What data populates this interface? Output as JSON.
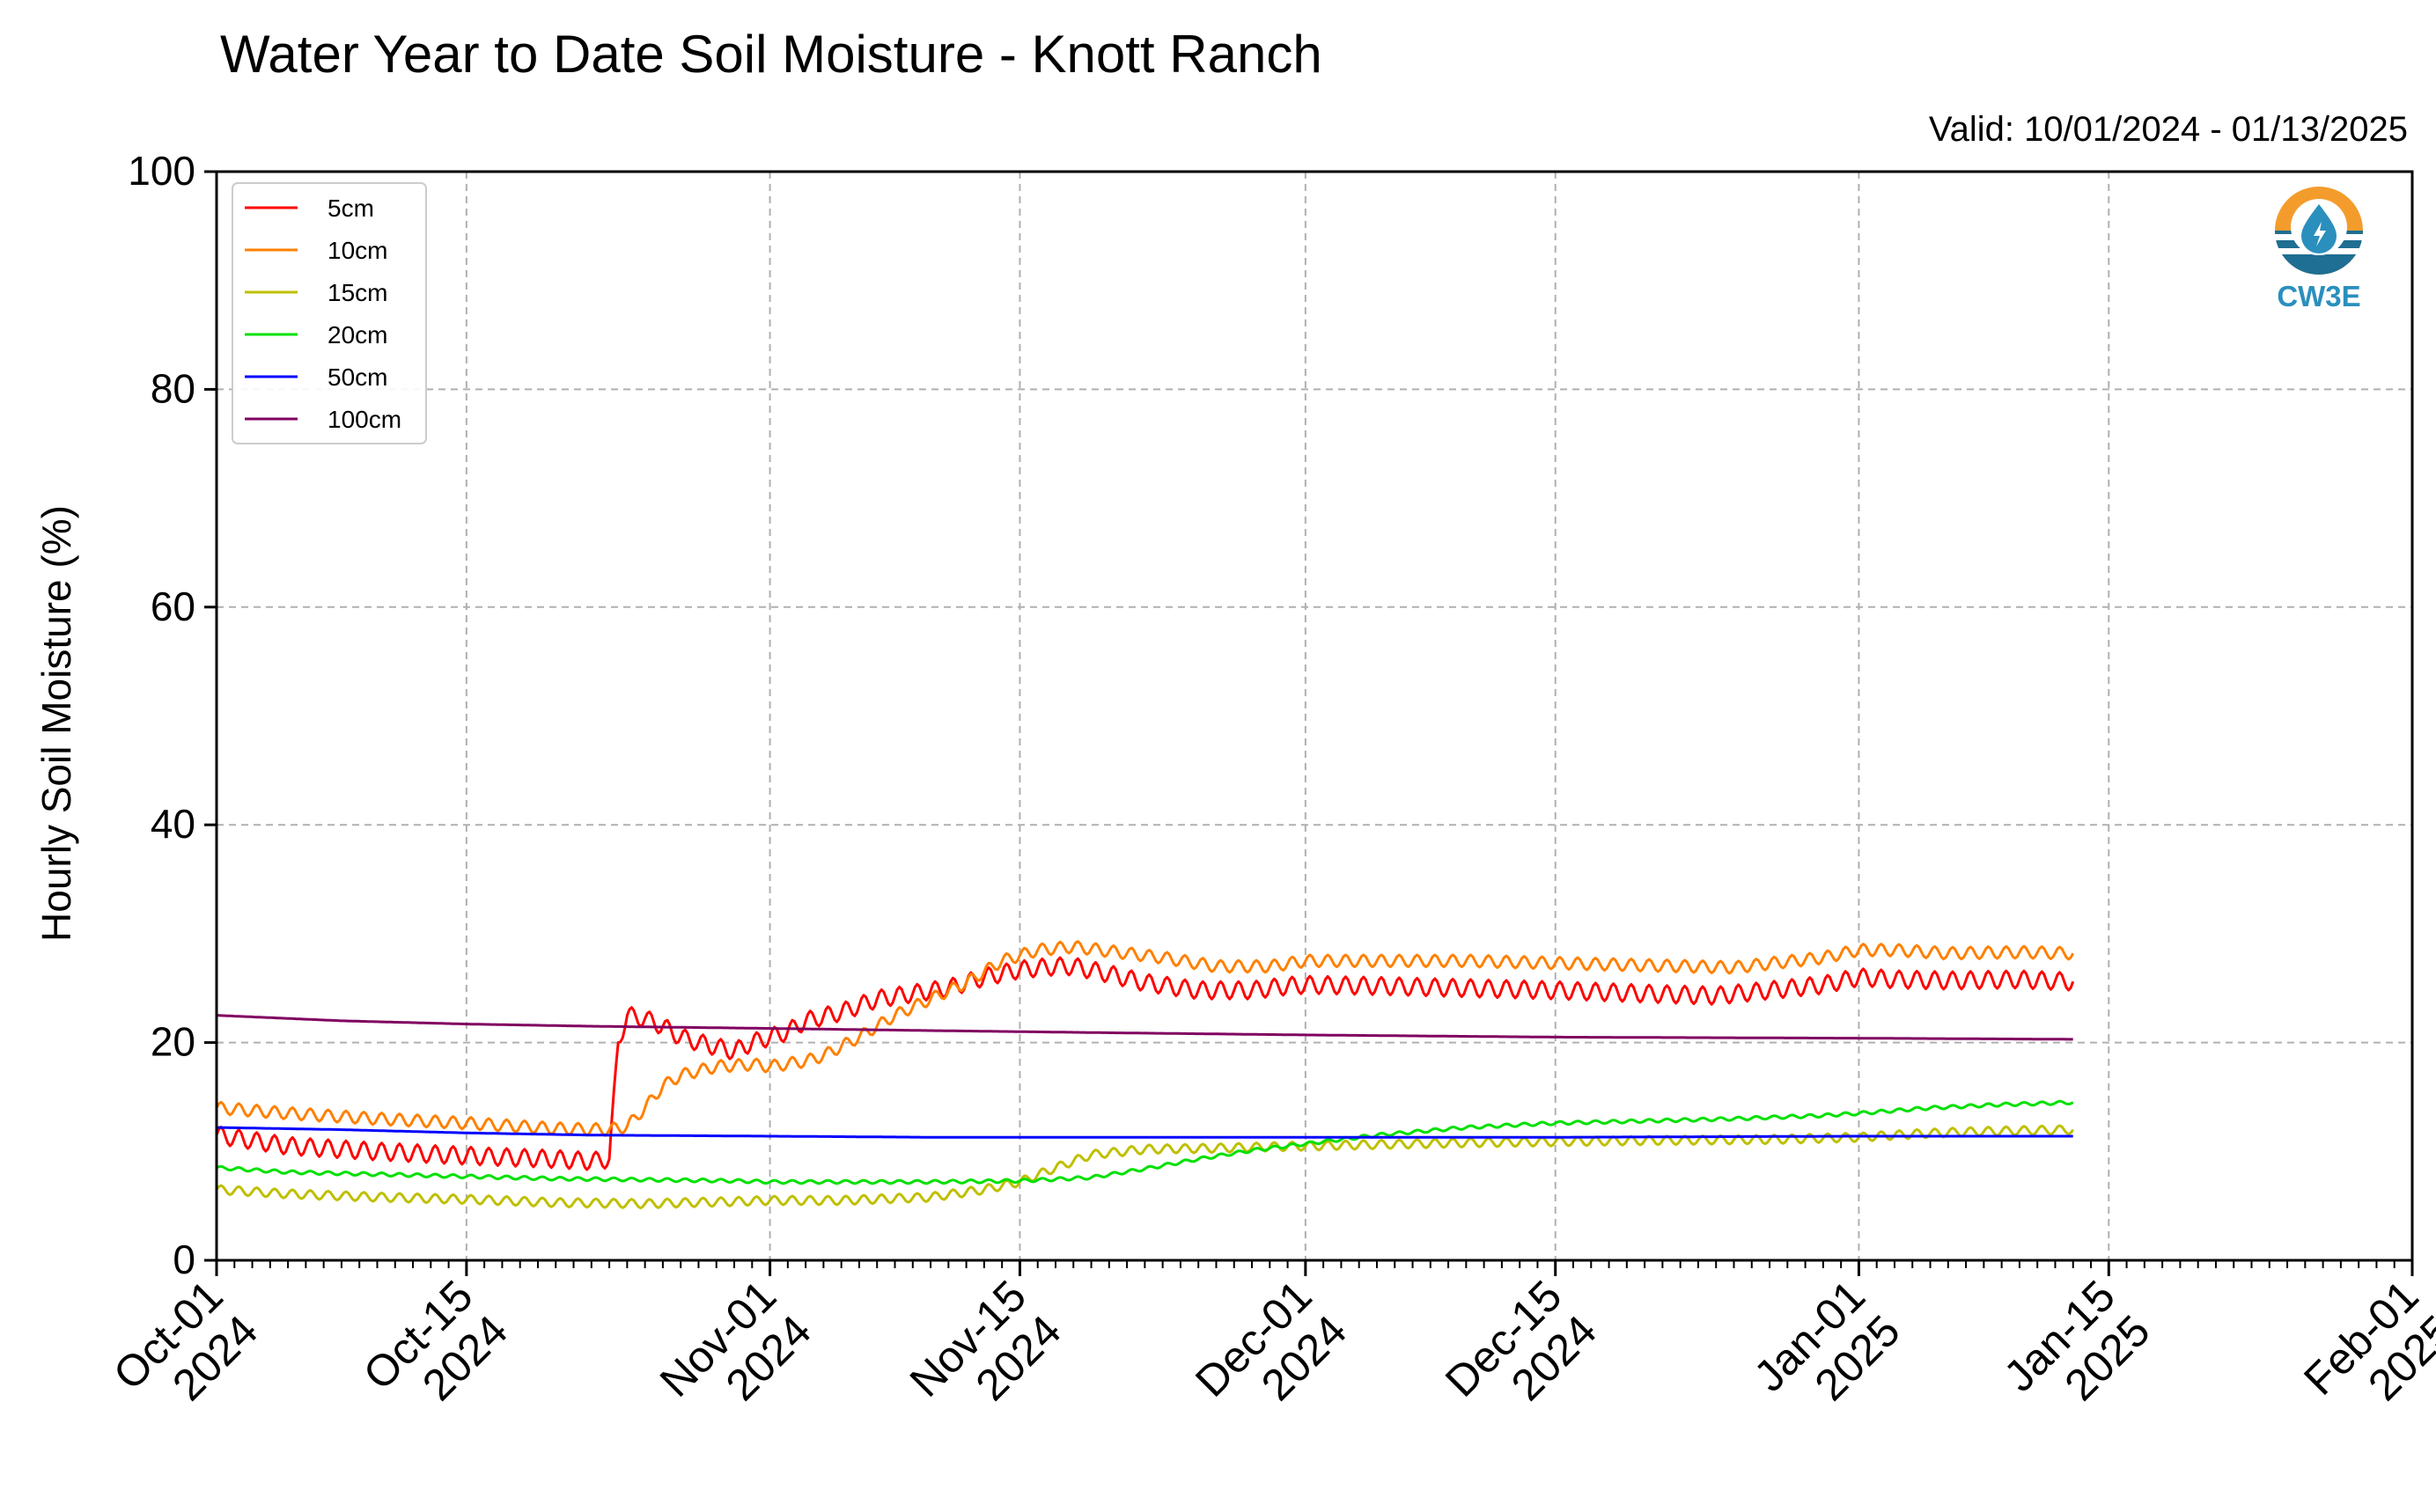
{
  "chart_data": {
    "type": "line",
    "title": "Water Year to Date Soil Moisture - Knott Ranch",
    "subtitle": "Valid: 10/01/2024 - 01/13/2025",
    "ylabel": "Hourly Soil Moisture (%)",
    "xlabel": "",
    "xlim": [
      "2024-10-01",
      "2025-02-01"
    ],
    "ylim": [
      0,
      100
    ],
    "yticks": [
      0,
      20,
      40,
      60,
      80,
      100
    ],
    "xticks": [
      {
        "date": "2024-10-01",
        "line1": "Oct-01",
        "line2": "2024"
      },
      {
        "date": "2024-10-15",
        "line1": "Oct-15",
        "line2": "2024"
      },
      {
        "date": "2024-11-01",
        "line1": "Nov-01",
        "line2": "2024"
      },
      {
        "date": "2024-11-15",
        "line1": "Nov-15",
        "line2": "2024"
      },
      {
        "date": "2024-12-01",
        "line1": "Dec-01",
        "line2": "2024"
      },
      {
        "date": "2024-12-15",
        "line1": "Dec-15",
        "line2": "2024"
      },
      {
        "date": "2025-01-01",
        "line1": "Jan-01",
        "line2": "2025"
      },
      {
        "date": "2025-01-15",
        "line1": "Jan-15",
        "line2": "2025"
      },
      {
        "date": "2025-02-01",
        "line1": "Feb-01",
        "line2": "2025"
      }
    ],
    "grid": true,
    "legend_position": "top-left",
    "logo_text": "CW3E",
    "series": [
      {
        "name": "5cm",
        "color": "#ff0000",
        "diurnal": 0.8,
        "points": [
          [
            "2024-10-01",
            11.5
          ],
          [
            "2024-10-05",
            10.5
          ],
          [
            "2024-10-10",
            10.0
          ],
          [
            "2024-10-15",
            9.6
          ],
          [
            "2024-10-20",
            9.3
          ],
          [
            "2024-10-22",
            9.1
          ],
          [
            "2024-10-23",
            9.3
          ],
          [
            "2024-10-23 12:00",
            20.0
          ],
          [
            "2024-10-24",
            22.5
          ],
          [
            "2024-10-25",
            22.2
          ],
          [
            "2024-10-26",
            21.5
          ],
          [
            "2024-10-27",
            20.5
          ],
          [
            "2024-10-28",
            20.0
          ],
          [
            "2024-10-30",
            19.2
          ],
          [
            "2024-10-31",
            20.0
          ],
          [
            "2024-11-02",
            21.0
          ],
          [
            "2024-11-03",
            22.0
          ],
          [
            "2024-11-05",
            22.8
          ],
          [
            "2024-11-07",
            24.0
          ],
          [
            "2024-11-09",
            24.5
          ],
          [
            "2024-11-11",
            25.0
          ],
          [
            "2024-11-13",
            26.0
          ],
          [
            "2024-11-15",
            26.7
          ],
          [
            "2024-11-17",
            27.0
          ],
          [
            "2024-11-18",
            27.0
          ],
          [
            "2024-11-20",
            26.3
          ],
          [
            "2024-11-22",
            25.5
          ],
          [
            "2024-11-25",
            24.8
          ],
          [
            "2024-11-28",
            24.8
          ],
          [
            "2024-11-30",
            25.2
          ],
          [
            "2024-12-01",
            25.3
          ],
          [
            "2024-12-05",
            25.2
          ],
          [
            "2024-12-10",
            25.0
          ],
          [
            "2024-12-15",
            24.8
          ],
          [
            "2024-12-20",
            24.5
          ],
          [
            "2024-12-24",
            24.3
          ],
          [
            "2024-12-27",
            24.8
          ],
          [
            "2024-12-30",
            25.3
          ],
          [
            "2025-01-01",
            26.0
          ],
          [
            "2025-01-03",
            25.8
          ],
          [
            "2025-01-06",
            25.7
          ],
          [
            "2025-01-10",
            25.8
          ],
          [
            "2025-01-13",
            25.6
          ]
        ]
      },
      {
        "name": "10cm",
        "color": "#ff8000",
        "diurnal": 0.55,
        "points": [
          [
            "2024-10-01",
            14.0
          ],
          [
            "2024-10-05",
            13.5
          ],
          [
            "2024-10-10",
            13.0
          ],
          [
            "2024-10-15",
            12.6
          ],
          [
            "2024-10-20",
            12.1
          ],
          [
            "2024-10-23",
            12.0
          ],
          [
            "2024-10-24",
            12.3
          ],
          [
            "2024-10-25",
            14.0
          ],
          [
            "2024-10-26",
            16.0
          ],
          [
            "2024-10-27",
            17.0
          ],
          [
            "2024-10-29",
            17.8
          ],
          [
            "2024-10-31",
            18.0
          ],
          [
            "2024-11-01",
            17.8
          ],
          [
            "2024-11-03",
            18.3
          ],
          [
            "2024-11-04",
            18.8
          ],
          [
            "2024-11-06",
            20.5
          ],
          [
            "2024-11-08",
            22.5
          ],
          [
            "2024-11-10",
            24.0
          ],
          [
            "2024-11-12",
            25.5
          ],
          [
            "2024-11-14",
            27.5
          ],
          [
            "2024-11-16",
            28.5
          ],
          [
            "2024-11-18",
            28.8
          ],
          [
            "2024-11-20",
            28.4
          ],
          [
            "2024-11-23",
            27.8
          ],
          [
            "2024-11-26",
            27.0
          ],
          [
            "2024-11-29",
            27.0
          ],
          [
            "2024-12-01",
            27.5
          ],
          [
            "2024-12-10",
            27.5
          ],
          [
            "2024-12-15",
            27.3
          ],
          [
            "2024-12-20",
            27.1
          ],
          [
            "2024-12-25",
            26.9
          ],
          [
            "2024-12-30",
            27.8
          ],
          [
            "2025-01-01",
            28.5
          ],
          [
            "2025-01-03",
            28.5
          ],
          [
            "2025-01-06",
            28.2
          ],
          [
            "2025-01-10",
            28.3
          ],
          [
            "2025-01-13",
            28.2
          ]
        ]
      },
      {
        "name": "15cm",
        "color": "#bfbf00",
        "diurnal": 0.4,
        "points": [
          [
            "2024-10-01",
            6.5
          ],
          [
            "2024-10-05",
            6.1
          ],
          [
            "2024-10-10",
            5.8
          ],
          [
            "2024-10-15",
            5.6
          ],
          [
            "2024-10-20",
            5.3
          ],
          [
            "2024-10-25",
            5.2
          ],
          [
            "2024-10-30",
            5.4
          ],
          [
            "2024-11-01",
            5.5
          ],
          [
            "2024-11-05",
            5.5
          ],
          [
            "2024-11-10",
            5.8
          ],
          [
            "2024-11-13",
            6.5
          ],
          [
            "2024-11-15",
            7.2
          ],
          [
            "2024-11-17",
            8.5
          ],
          [
            "2024-11-19",
            9.7
          ],
          [
            "2024-11-22",
            10.2
          ],
          [
            "2024-11-26",
            10.3
          ],
          [
            "2024-12-01",
            10.5
          ],
          [
            "2024-12-10",
            10.8
          ],
          [
            "2024-12-20",
            11.0
          ],
          [
            "2024-12-27",
            11.1
          ],
          [
            "2025-01-01",
            11.3
          ],
          [
            "2025-01-04",
            11.6
          ],
          [
            "2025-01-07",
            11.8
          ],
          [
            "2025-01-13",
            12.0
          ]
        ]
      },
      {
        "name": "20cm",
        "color": "#00e000",
        "diurnal": 0.15,
        "points": [
          [
            "2024-10-01",
            8.5
          ],
          [
            "2024-10-05",
            8.1
          ],
          [
            "2024-10-10",
            7.9
          ],
          [
            "2024-10-15",
            7.7
          ],
          [
            "2024-10-20",
            7.5
          ],
          [
            "2024-10-25",
            7.4
          ],
          [
            "2024-10-30",
            7.3
          ],
          [
            "2024-11-01",
            7.2
          ],
          [
            "2024-11-05",
            7.2
          ],
          [
            "2024-11-10",
            7.2
          ],
          [
            "2024-11-15",
            7.3
          ],
          [
            "2024-11-19",
            7.6
          ],
          [
            "2024-11-22",
            8.4
          ],
          [
            "2024-11-25",
            9.3
          ],
          [
            "2024-11-28",
            10.1
          ],
          [
            "2024-12-01",
            10.7
          ],
          [
            "2024-12-05",
            11.5
          ],
          [
            "2024-12-10",
            12.2
          ],
          [
            "2024-12-15",
            12.6
          ],
          [
            "2024-12-20",
            12.8
          ],
          [
            "2024-12-25",
            13.0
          ],
          [
            "2024-12-30",
            13.3
          ],
          [
            "2025-01-01",
            13.5
          ],
          [
            "2025-01-05",
            14.0
          ],
          [
            "2025-01-09",
            14.3
          ],
          [
            "2025-01-13",
            14.5
          ]
        ]
      },
      {
        "name": "50cm",
        "color": "#0000ff",
        "diurnal": 0.0,
        "points": [
          [
            "2024-10-01",
            12.2
          ],
          [
            "2024-10-08",
            12.0
          ],
          [
            "2024-10-15",
            11.7
          ],
          [
            "2024-10-22",
            11.5
          ],
          [
            "2024-11-01",
            11.4
          ],
          [
            "2024-11-10",
            11.3
          ],
          [
            "2024-11-20",
            11.3
          ],
          [
            "2024-12-01",
            11.3
          ],
          [
            "2024-12-15",
            11.3
          ],
          [
            "2025-01-01",
            11.4
          ],
          [
            "2025-01-13",
            11.4
          ]
        ]
      },
      {
        "name": "100cm",
        "color": "#800060",
        "diurnal": 0.0,
        "points": [
          [
            "2024-10-01",
            22.5
          ],
          [
            "2024-10-08",
            22.0
          ],
          [
            "2024-10-15",
            21.7
          ],
          [
            "2024-10-22",
            21.5
          ],
          [
            "2024-11-01",
            21.3
          ],
          [
            "2024-11-10",
            21.1
          ],
          [
            "2024-11-20",
            20.9
          ],
          [
            "2024-12-01",
            20.7
          ],
          [
            "2024-12-15",
            20.5
          ],
          [
            "2025-01-01",
            20.4
          ],
          [
            "2025-01-13",
            20.3
          ]
        ]
      }
    ]
  }
}
